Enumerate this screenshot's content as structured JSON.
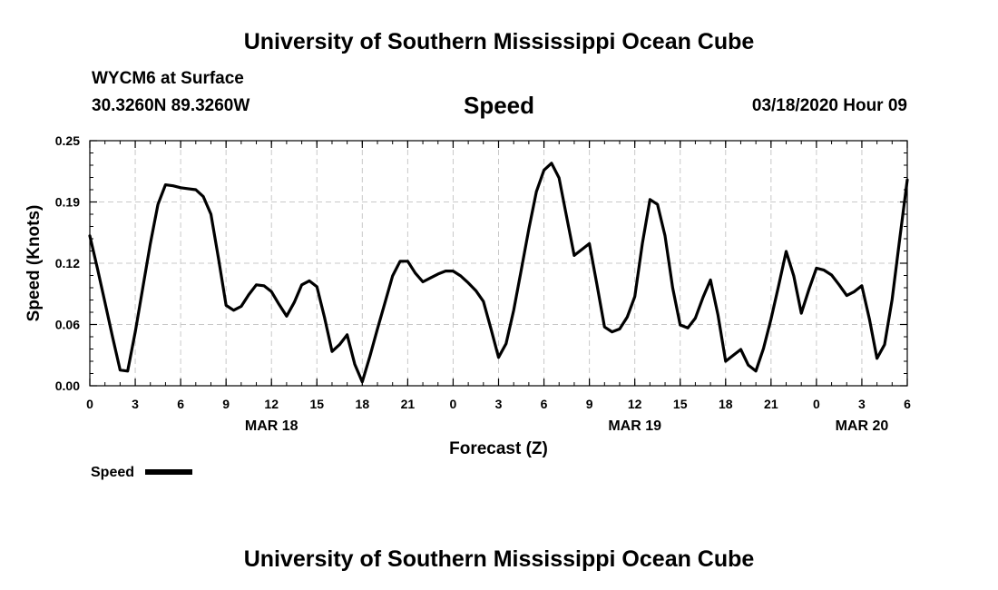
{
  "page": {
    "title_top": "University of Southern Mississippi Ocean Cube",
    "title_bottom": "University of Southern Mississippi Ocean Cube",
    "station": "WYCM6 at Surface",
    "coords": "30.3260N 89.3260W",
    "variable": "Speed",
    "datetime": "03/18/2020 Hour 09"
  },
  "chart_data": {
    "type": "line",
    "title": "Speed",
    "xlabel": "Forecast (Z)",
    "ylabel": "Speed (Knots)",
    "xlim": [
      0,
      54
    ],
    "ylim": [
      0,
      0.25
    ],
    "grid": true,
    "x_ticks": [
      {
        "value": 0,
        "label": "0"
      },
      {
        "value": 3,
        "label": "3"
      },
      {
        "value": 6,
        "label": "6"
      },
      {
        "value": 9,
        "label": "9"
      },
      {
        "value": 12,
        "label": "12"
      },
      {
        "value": 15,
        "label": "15"
      },
      {
        "value": 18,
        "label": "18"
      },
      {
        "value": 21,
        "label": "21"
      },
      {
        "value": 24,
        "label": "0"
      },
      {
        "value": 27,
        "label": "3"
      },
      {
        "value": 30,
        "label": "6"
      },
      {
        "value": 33,
        "label": "9"
      },
      {
        "value": 36,
        "label": "12"
      },
      {
        "value": 39,
        "label": "15"
      },
      {
        "value": 42,
        "label": "18"
      },
      {
        "value": 45,
        "label": "21"
      },
      {
        "value": 48,
        "label": "0"
      },
      {
        "value": 51,
        "label": "3"
      },
      {
        "value": 54,
        "label": "6"
      }
    ],
    "y_ticks": [
      {
        "value": 0,
        "label": "0.00"
      },
      {
        "value": 0.0625,
        "label": "0.06"
      },
      {
        "value": 0.125,
        "label": "0.12"
      },
      {
        "value": 0.1875,
        "label": "0.19"
      },
      {
        "value": 0.25,
        "label": "0.25"
      }
    ],
    "date_labels": [
      {
        "value": 12,
        "label": "MAR 18"
      },
      {
        "value": 36,
        "label": "MAR 19"
      },
      {
        "value": 51,
        "label": "MAR 20"
      }
    ],
    "legend": {
      "label": "Speed",
      "position": "bottom-left"
    },
    "series": [
      {
        "name": "Speed",
        "x": [
          0,
          0.5,
          1,
          1.5,
          2,
          2.5,
          3,
          3.5,
          4,
          4.5,
          5,
          5.5,
          6,
          6.5,
          7,
          7.5,
          8,
          8.5,
          9,
          9.5,
          10,
          10.5,
          11,
          11.5,
          12,
          12.5,
          13,
          13.5,
          14,
          14.5,
          15,
          15.5,
          16,
          16.5,
          17,
          17.5,
          18,
          18.5,
          19,
          19.5,
          20,
          20.5,
          21,
          21.5,
          22,
          22.5,
          23,
          23.5,
          24,
          24.5,
          25,
          25.5,
          26,
          26.5,
          27,
          27.5,
          28,
          28.5,
          29,
          29.5,
          30,
          30.5,
          31,
          31.5,
          32,
          32.5,
          33,
          33.5,
          34,
          34.5,
          35,
          35.5,
          36,
          36.5,
          37,
          37.5,
          38,
          38.5,
          39,
          39.5,
          40,
          40.5,
          41,
          41.5,
          42,
          42.5,
          43,
          43.5,
          44,
          44.5,
          45,
          45.5,
          46,
          46.5,
          47,
          47.5,
          48,
          48.5,
          49,
          49.5,
          50,
          50.5,
          51,
          51.5,
          52,
          52.5,
          53,
          53.5,
          54
        ],
        "values": [
          0.153,
          0.12,
          0.085,
          0.05,
          0.016,
          0.015,
          0.055,
          0.1,
          0.145,
          0.185,
          0.205,
          0.204,
          0.202,
          0.201,
          0.2,
          0.193,
          0.175,
          0.13,
          0.082,
          0.077,
          0.081,
          0.093,
          0.103,
          0.102,
          0.096,
          0.083,
          0.071,
          0.085,
          0.103,
          0.107,
          0.101,
          0.07,
          0.035,
          0.042,
          0.052,
          0.022,
          0.004,
          0.03,
          0.058,
          0.085,
          0.112,
          0.127,
          0.127,
          0.115,
          0.106,
          0.11,
          0.114,
          0.117,
          0.117,
          0.112,
          0.105,
          0.097,
          0.086,
          0.058,
          0.029,
          0.043,
          0.077,
          0.118,
          0.16,
          0.198,
          0.22,
          0.227,
          0.212,
          0.172,
          0.133,
          0.139,
          0.145,
          0.103,
          0.06,
          0.055,
          0.058,
          0.07,
          0.091,
          0.145,
          0.19,
          0.185,
          0.153,
          0.1,
          0.062,
          0.059,
          0.069,
          0.09,
          0.108,
          0.072,
          0.025,
          0.031,
          0.037,
          0.021,
          0.015,
          0.038,
          0.068,
          0.102,
          0.137,
          0.112,
          0.074,
          0.098,
          0.12,
          0.118,
          0.113,
          0.103,
          0.092,
          0.096,
          0.102,
          0.068,
          0.028,
          0.042,
          0.088,
          0.15,
          0.21
        ]
      }
    ]
  }
}
